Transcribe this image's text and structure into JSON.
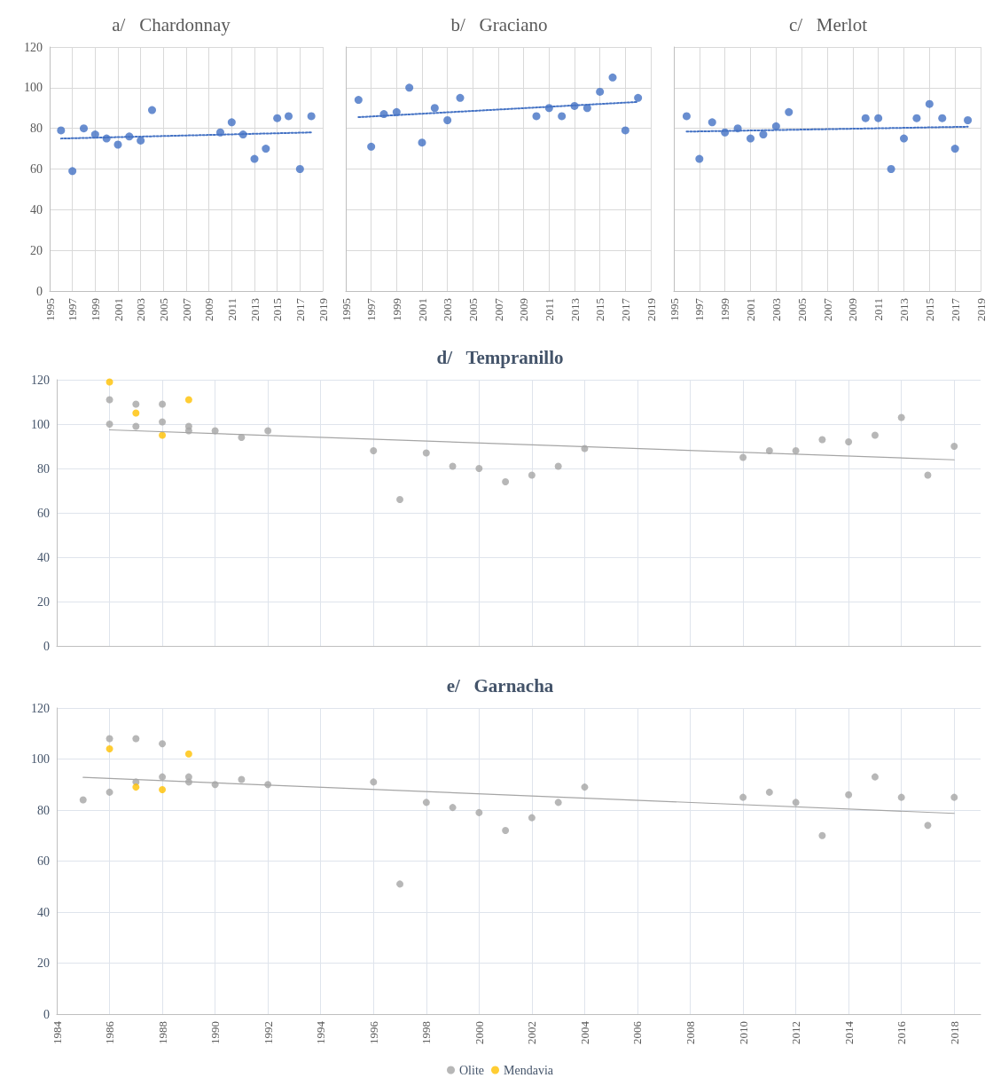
{
  "chart_data": [
    {
      "type": "scatter",
      "title": "a/   Chardonnay",
      "marker": "circle",
      "grid": true,
      "xlim": [
        1995,
        2019
      ],
      "xticks": [
        1995,
        1997,
        1999,
        2001,
        2003,
        2005,
        2007,
        2009,
        2011,
        2013,
        2015,
        2017,
        2019
      ],
      "ylim": [
        0,
        120
      ],
      "yticks": [
        0,
        20,
        40,
        60,
        80,
        100,
        120
      ],
      "series": [
        {
          "color": "#4472c4",
          "x": [
            1996,
            1997,
            1998,
            1999,
            2000,
            2001,
            2002,
            2003,
            2004,
            2010,
            2011,
            2012,
            2013,
            2014,
            2015,
            2016,
            2017,
            2018
          ],
          "values": [
            79,
            59,
            80,
            77,
            75,
            72,
            76,
            74,
            89,
            78,
            83,
            77,
            65,
            70,
            85,
            86,
            60,
            86
          ]
        },
        {
          "type": "line",
          "color": "#4472c4",
          "marker": "none",
          "line_style": "dotted",
          "x": [
            1996,
            2018
          ],
          "values": [
            75,
            78
          ]
        }
      ]
    },
    {
      "type": "scatter",
      "title": "b/   Graciano",
      "marker": "circle",
      "grid": true,
      "tick_labels": "x",
      "xlim": [
        1995,
        2019
      ],
      "xticks": [
        1995,
        1997,
        1999,
        2001,
        2003,
        2005,
        2007,
        2009,
        2011,
        2013,
        2015,
        2017,
        2019
      ],
      "ylim": [
        0,
        120
      ],
      "yticks": [
        0,
        20,
        40,
        60,
        80,
        100,
        120
      ],
      "series": [
        {
          "color": "#4472c4",
          "x": [
            1996,
            1997,
            1998,
            1999,
            2000,
            2001,
            2002,
            2003,
            2004,
            2010,
            2011,
            2012,
            2013,
            2014,
            2015,
            2016,
            2017,
            2018
          ],
          "values": [
            94,
            71,
            87,
            88,
            100,
            73,
            90,
            84,
            95,
            86,
            90,
            86,
            91,
            90,
            98,
            105,
            79,
            95
          ]
        },
        {
          "type": "line",
          "color": "#4472c4",
          "marker": "none",
          "line_style": "dotted",
          "x": [
            1996,
            2018
          ],
          "values": [
            85.5,
            93
          ]
        }
      ]
    },
    {
      "type": "scatter",
      "title": "c/   Merlot",
      "marker": "circle",
      "grid": true,
      "tick_labels": "x",
      "xlim": [
        1995,
        2019
      ],
      "xticks": [
        1995,
        1997,
        1999,
        2001,
        2003,
        2005,
        2007,
        2009,
        2011,
        2013,
        2015,
        2017,
        2019
      ],
      "ylim": [
        0,
        120
      ],
      "yticks": [
        0,
        20,
        40,
        60,
        80,
        100,
        120
      ],
      "series": [
        {
          "color": "#4472c4",
          "x": [
            1996,
            1997,
            1998,
            1999,
            2000,
            2001,
            2002,
            2003,
            2004,
            2010,
            2011,
            2012,
            2013,
            2014,
            2015,
            2016,
            2017,
            2018
          ],
          "values": [
            86,
            65,
            83,
            78,
            80,
            75,
            77,
            81,
            88,
            85,
            85,
            60,
            75,
            85,
            92,
            85,
            70,
            84
          ]
        },
        {
          "type": "line",
          "color": "#4472c4",
          "marker": "none",
          "line_style": "dotted",
          "x": [
            1996,
            2018
          ],
          "values": [
            78.4,
            80.8
          ]
        }
      ]
    },
    {
      "type": "scatter",
      "title": "d/   Tempranillo",
      "marker": "circle",
      "grid": true,
      "tick_labels": "y",
      "xlim": [
        1984,
        2019
      ],
      "xticks": [
        1984,
        1986,
        1988,
        1990,
        1992,
        1994,
        1996,
        1998,
        2000,
        2002,
        2004,
        2006,
        2008,
        2010,
        2012,
        2014,
        2016,
        2018
      ],
      "ylim": [
        0,
        120
      ],
      "yticks": [
        0,
        20,
        40,
        60,
        80,
        100,
        120
      ],
      "series": [
        {
          "color": "#a5a5a5",
          "x": [
            1986,
            1986,
            1987,
            1987,
            1988,
            1988,
            1989,
            1989,
            1990,
            1991,
            1992,
            1996,
            1997,
            1998,
            1999,
            2000,
            2001,
            2002,
            2003,
            2004,
            2010,
            2011,
            2012,
            2013,
            2014,
            2015,
            2016,
            2017,
            2018
          ],
          "values": [
            111,
            100,
            109,
            99,
            109,
            101,
            99,
            97,
            97,
            94,
            97,
            88,
            66,
            87,
            81,
            80,
            74,
            77,
            81,
            89,
            85,
            88,
            88,
            93,
            92,
            95,
            103,
            77,
            90
          ]
        },
        {
          "color": "#ffc000",
          "x": [
            1986,
            1987,
            1988,
            1989
          ],
          "values": [
            119,
            105,
            95,
            111
          ]
        },
        {
          "type": "line",
          "color": "#a5a5a5",
          "marker": "none",
          "line_style": "solid",
          "x": [
            1986,
            2018
          ],
          "values": [
            97.4,
            83.9
          ]
        }
      ]
    },
    {
      "type": "scatter",
      "title": "e/   Garnacha",
      "marker": "circle",
      "grid": true,
      "legend": "bottom",
      "xlim": [
        1984,
        2019
      ],
      "xticks": [
        1984,
        1986,
        1988,
        1990,
        1992,
        1994,
        1996,
        1998,
        2000,
        2002,
        2004,
        2006,
        2008,
        2010,
        2012,
        2014,
        2016,
        2018
      ],
      "ylim": [
        0,
        120
      ],
      "yticks": [
        0,
        20,
        40,
        60,
        80,
        100,
        120
      ],
      "series": [
        {
          "name": "Olite",
          "color": "#a5a5a5",
          "x": [
            1985,
            1986,
            1986,
            1987,
            1987,
            1988,
            1988,
            1989,
            1989,
            1990,
            1991,
            1992,
            1996,
            1997,
            1998,
            1999,
            2000,
            2001,
            2002,
            2003,
            2004,
            2010,
            2011,
            2012,
            2013,
            2014,
            2015,
            2016,
            2017,
            2018
          ],
          "values": [
            84,
            108,
            87,
            108,
            91,
            106,
            93,
            93,
            91,
            90,
            92,
            90,
            91,
            51,
            83,
            81,
            79,
            72,
            77,
            83,
            89,
            85,
            87,
            83,
            70,
            86,
            93,
            85,
            74,
            85
          ]
        },
        {
          "name": "Mendavia",
          "color": "#ffc000",
          "x": [
            1986,
            1987,
            1988,
            1989
          ],
          "values": [
            104,
            89,
            88,
            102
          ]
        },
        {
          "type": "line",
          "color": "#a5a5a5",
          "marker": "none",
          "line_style": "solid",
          "x": [
            1985,
            2018
          ],
          "values": [
            92.8,
            78.7
          ]
        }
      ]
    }
  ]
}
